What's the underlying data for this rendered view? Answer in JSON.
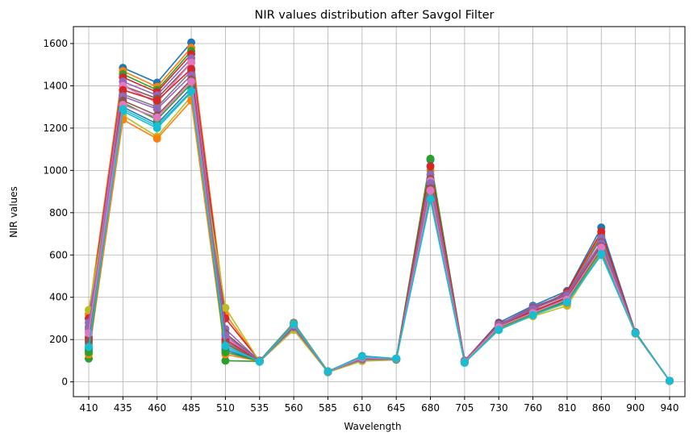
{
  "chart_data": {
    "type": "line",
    "title": "NIR values distribution after Savgol Filter",
    "xlabel": "Wavelength",
    "ylabel": "NIR values",
    "categories": [
      "410",
      "435",
      "460",
      "485",
      "510",
      "535",
      "560",
      "585",
      "610",
      "645",
      "680",
      "705",
      "730",
      "760",
      "810",
      "860",
      "900",
      "940"
    ],
    "ylim": [
      -70,
      1680
    ],
    "yticks": [
      0,
      200,
      400,
      600,
      800,
      1000,
      1200,
      1400,
      1600
    ],
    "grid": true,
    "marker": "circle",
    "series": [
      {
        "color": "#1f77b4",
        "values": [
          250,
          1485,
          1415,
          1605,
          190,
          100,
          280,
          50,
          120,
          110,
          1050,
          100,
          280,
          360,
          430,
          730,
          235,
          5
        ]
      },
      {
        "color": "#ff7f0e",
        "values": [
          320,
          1470,
          1395,
          1580,
          320,
          98,
          270,
          48,
          110,
          108,
          1000,
          98,
          270,
          350,
          420,
          700,
          232,
          5
        ]
      },
      {
        "color": "#2ca02c",
        "values": [
          110,
          1455,
          1380,
          1565,
          100,
          97,
          275,
          47,
          115,
          109,
          1055,
          97,
          265,
          345,
          410,
          690,
          230,
          5
        ]
      },
      {
        "color": "#d62728",
        "values": [
          300,
          1440,
          1370,
          1550,
          300,
          100,
          265,
          49,
          112,
          110,
          1020,
          100,
          275,
          340,
          425,
          710,
          233,
          5
        ]
      },
      {
        "color": "#9467bd",
        "values": [
          280,
          1420,
          1355,
          1530,
          250,
          98,
          260,
          46,
          108,
          107,
          980,
          96,
          270,
          355,
          415,
          680,
          231,
          5
        ]
      },
      {
        "color": "#8c564b",
        "values": [
          200,
          1400,
          1340,
          1510,
          230,
          99,
          268,
          48,
          105,
          108,
          960,
          98,
          268,
          350,
          412,
          660,
          232,
          5
        ]
      },
      {
        "color": "#e377c2",
        "values": [
          240,
          1400,
          1320,
          1510,
          210,
          98,
          255,
          47,
          100,
          106,
          950,
          97,
          262,
          330,
          400,
          640,
          230,
          5
        ]
      },
      {
        "color": "#7f7f7f",
        "values": [
          180,
          1360,
          1300,
          1470,
          190,
          97,
          250,
          46,
          102,
          105,
          920,
          96,
          258,
          325,
          395,
          630,
          229,
          5
        ]
      },
      {
        "color": "#bcbd22",
        "values": [
          340,
          1260,
          1160,
          1350,
          350,
          96,
          245,
          45,
          98,
          104,
          900,
          95,
          255,
          310,
          360,
          610,
          228,
          5
        ]
      },
      {
        "color": "#17becf",
        "values": [
          160,
          1280,
          1200,
          1370,
          160,
          95,
          265,
          47,
          118,
          108,
          860,
          90,
          245,
          315,
          375,
          600,
          230,
          5
        ]
      },
      {
        "color": "#1f77b4",
        "values": [
          150,
          1300,
          1220,
          1390,
          150,
          96,
          272,
          49,
          122,
          110,
          870,
          92,
          250,
          320,
          380,
          620,
          231,
          5
        ]
      },
      {
        "color": "#ff7f0e",
        "values": [
          130,
          1240,
          1150,
          1330,
          130,
          97,
          278,
          50,
          118,
          109,
          910,
          94,
          252,
          318,
          372,
          615,
          230,
          5
        ]
      },
      {
        "color": "#2ca02c",
        "values": [
          140,
          1320,
          1240,
          1410,
          140,
          98,
          275,
          49,
          116,
          108,
          890,
          95,
          256,
          322,
          385,
          625,
          231,
          5
        ]
      },
      {
        "color": "#d62728",
        "values": [
          210,
          1380,
          1330,
          1480,
          200,
          99,
          262,
          48,
          110,
          107,
          930,
          96,
          265,
          335,
          400,
          650,
          232,
          5
        ]
      },
      {
        "color": "#9467bd",
        "values": [
          260,
          1350,
          1290,
          1450,
          220,
          97,
          258,
          47,
          106,
          106,
          940,
          97,
          268,
          345,
          408,
          655,
          231,
          5
        ]
      },
      {
        "color": "#8c564b",
        "values": [
          190,
          1330,
          1260,
          1430,
          180,
          98,
          266,
          48,
          112,
          108,
          915,
          96,
          262,
          328,
          392,
          640,
          230,
          5
        ]
      },
      {
        "color": "#e377c2",
        "values": [
          230,
          1310,
          1250,
          1420,
          170,
          97,
          270,
          48,
          114,
          109,
          905,
          95,
          260,
          326,
          390,
          635,
          230,
          5
        ]
      },
      {
        "color": "#17becf",
        "values": [
          165,
          1290,
          1210,
          1375,
          170,
          96,
          273,
          49,
          120,
          110,
          865,
          91,
          246,
          316,
          376,
          605,
          231,
          5
        ]
      }
    ]
  }
}
